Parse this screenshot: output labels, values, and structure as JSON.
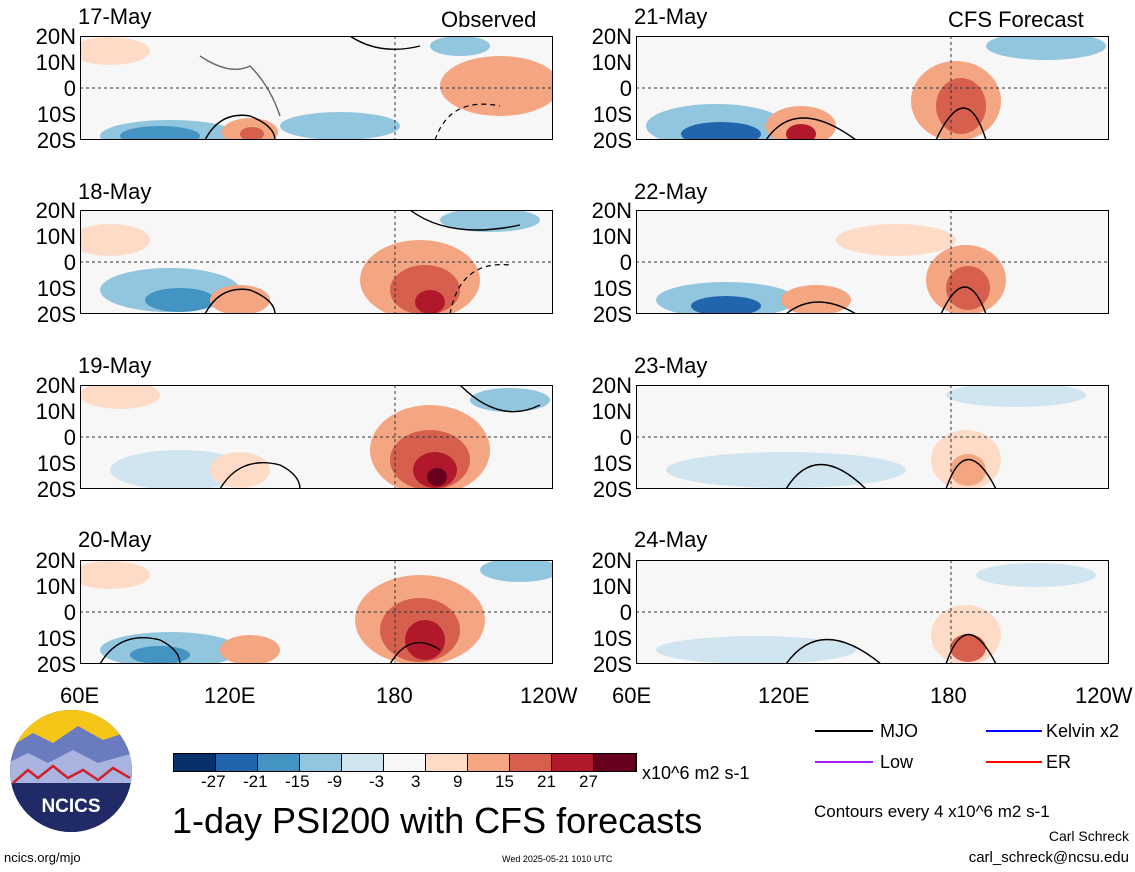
{
  "figure": {
    "title": "1-day PSI200 with CFS forecasts",
    "units": "x10^6 m2 s-1",
    "contour_note": "Contours every 4 x10^6 m2 s-1",
    "author": "Carl Schreck",
    "email": "carl_schreck@ncsu.edu",
    "url": "ncics.org/mjo",
    "timestamp": "Wed 2025-05-21 1010 UTC",
    "logo_text": "NCICS"
  },
  "columns": {
    "left_tag": "Observed",
    "right_tag": "CFS Forecast"
  },
  "panels_left": [
    "17-May",
    "18-May",
    "19-May",
    "20-May"
  ],
  "panels_right": [
    "21-May",
    "22-May",
    "23-May",
    "24-May"
  ],
  "lat_labels": [
    "20N",
    "10N",
    "0",
    "10S",
    "20S"
  ],
  "lon_labels": [
    "60E",
    "120E",
    "180",
    "120W"
  ],
  "colorbar": {
    "labels": [
      "-27",
      "-21",
      "-15",
      "-9",
      "-3",
      "3",
      "9",
      "15",
      "21",
      "27"
    ],
    "colors": [
      "#08306b",
      "#2166ac",
      "#4393c3",
      "#92c5de",
      "#d1e5f0",
      "#f7f7f7",
      "#fddbc7",
      "#f4a582",
      "#d6604d",
      "#b2182b",
      "#67001f"
    ]
  },
  "legend": [
    {
      "label": "MJO",
      "color": "#000000"
    },
    {
      "label": "Kelvin x2",
      "color": "#0000ff"
    },
    {
      "label": "Low",
      "color": "#a020f0"
    },
    {
      "label": "ER",
      "color": "#ff0000"
    }
  ]
}
